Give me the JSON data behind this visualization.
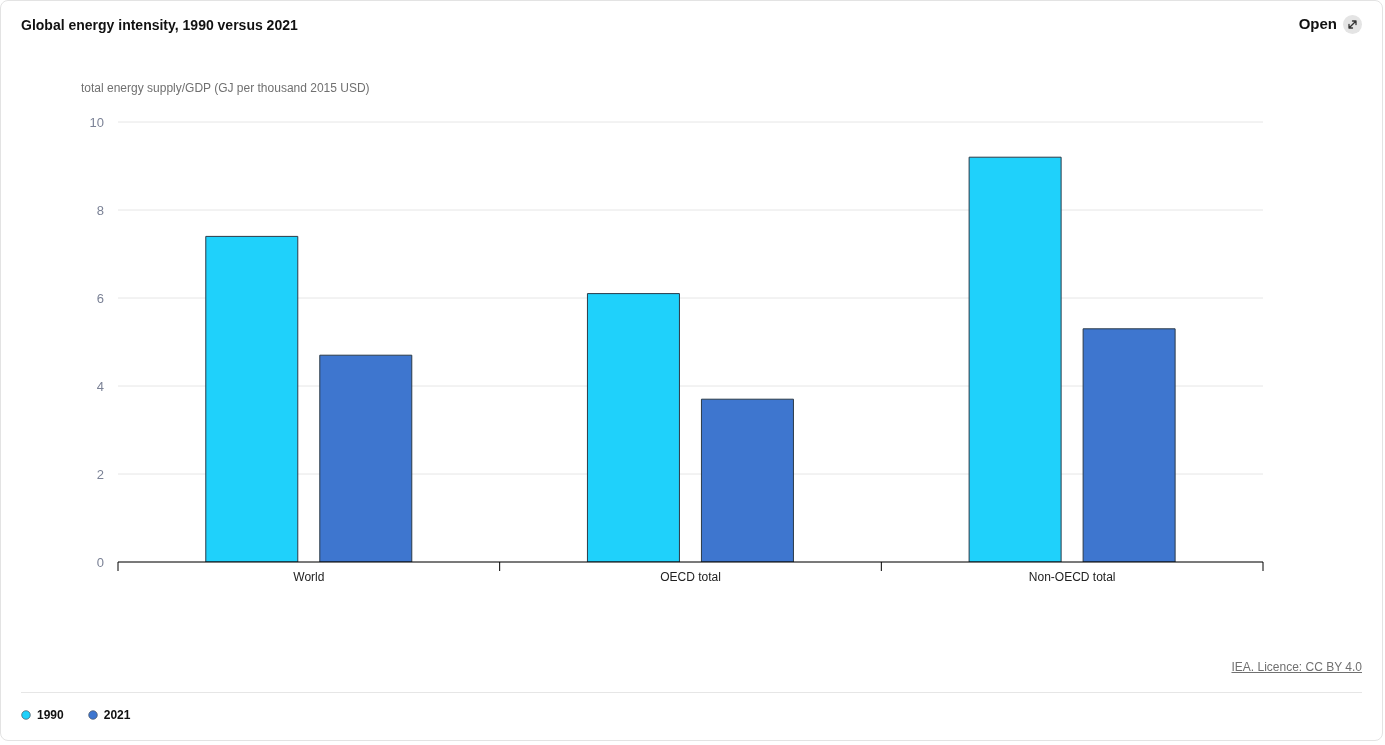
{
  "chart_data": {
    "type": "bar",
    "title": "Global energy intensity, 1990 versus 2021",
    "ylabel": "total energy supply/GDP (GJ per thousand 2015 USD)",
    "categories": [
      "World",
      "OECD total",
      "Non-OECD total"
    ],
    "series": [
      {
        "name": "1990",
        "color": "#1fd1fb",
        "values": [
          7.4,
          6.1,
          9.2
        ]
      },
      {
        "name": "2021",
        "color": "#3e76cf",
        "values": [
          4.7,
          3.7,
          5.3
        ]
      }
    ],
    "ylim": [
      0,
      10
    ],
    "yticks": [
      0,
      2,
      4,
      6,
      8,
      10
    ],
    "grid": "y",
    "legend": "bottom left",
    "annotations": [
      "IEA. Licence: CC BY 4.0",
      "Open"
    ]
  }
}
